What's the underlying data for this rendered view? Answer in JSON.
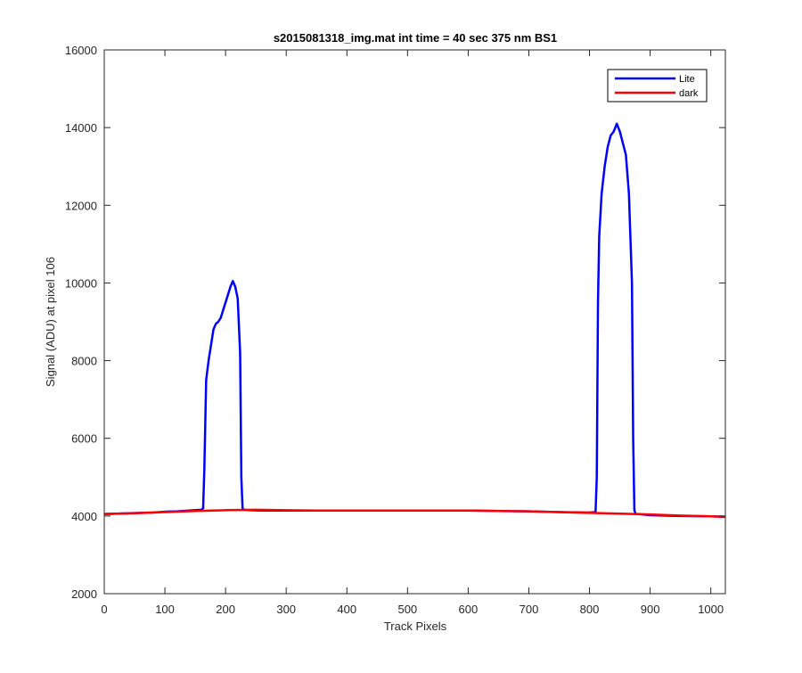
{
  "figure": {
    "background": "#ffffff",
    "axes_color": "#262626"
  },
  "chart_data": {
    "type": "line",
    "title": "s2015081318_img.mat int time = 40 sec  375 nm BS1",
    "xlabel": "Track Pixels",
    "ylabel": "Signal (ADU) at pixel 106",
    "xlim": [
      0,
      1024
    ],
    "ylim": [
      2000,
      16000
    ],
    "xticks": [
      0,
      100,
      200,
      300,
      400,
      500,
      600,
      700,
      800,
      900,
      1000
    ],
    "yticks": [
      2000,
      4000,
      6000,
      8000,
      10000,
      12000,
      14000,
      16000
    ],
    "grid": false,
    "legend_position": "top-right",
    "series": [
      {
        "name": "Lite",
        "color": "#0000ff",
        "x": [
          0,
          20,
          40,
          60,
          80,
          100,
          120,
          140,
          160,
          163,
          165,
          168,
          172,
          176,
          180,
          184,
          188,
          192,
          196,
          200,
          204,
          208,
          212,
          216,
          220,
          224,
          226,
          228,
          230,
          240,
          260,
          280,
          300,
          350,
          400,
          450,
          500,
          550,
          600,
          650,
          700,
          750,
          800,
          810,
          812,
          814,
          816,
          820,
          825,
          830,
          835,
          840,
          845,
          850,
          855,
          860,
          865,
          870,
          872,
          874,
          876,
          880,
          900,
          950,
          1000,
          1024
        ],
        "y": [
          4050,
          4060,
          4070,
          4080,
          4090,
          4110,
          4120,
          4140,
          4160,
          4200,
          5200,
          7500,
          8000,
          8400,
          8800,
          8950,
          9000,
          9100,
          9300,
          9500,
          9700,
          9900,
          10050,
          9900,
          9600,
          8200,
          5000,
          4200,
          4160,
          4150,
          4140,
          4140,
          4140,
          4140,
          4140,
          4140,
          4140,
          4140,
          4140,
          4130,
          4120,
          4100,
          4090,
          4100,
          5000,
          9500,
          11200,
          12300,
          13000,
          13500,
          13800,
          13900,
          14100,
          13900,
          13600,
          13300,
          12300,
          10000,
          6000,
          4150,
          4050,
          4050,
          4020,
          4000,
          3990,
          3980
        ]
      },
      {
        "name": "dark",
        "color": "#ff0000",
        "x": [
          0,
          50,
          100,
          150,
          200,
          250,
          300,
          350,
          400,
          450,
          500,
          550,
          600,
          650,
          700,
          750,
          800,
          850,
          900,
          950,
          1000,
          1024
        ],
        "y": [
          4050,
          4070,
          4100,
          4130,
          4150,
          4160,
          4150,
          4140,
          4140,
          4140,
          4140,
          4140,
          4140,
          4130,
          4120,
          4100,
          4080,
          4060,
          4040,
          4010,
          3990,
          3980
        ]
      }
    ]
  }
}
